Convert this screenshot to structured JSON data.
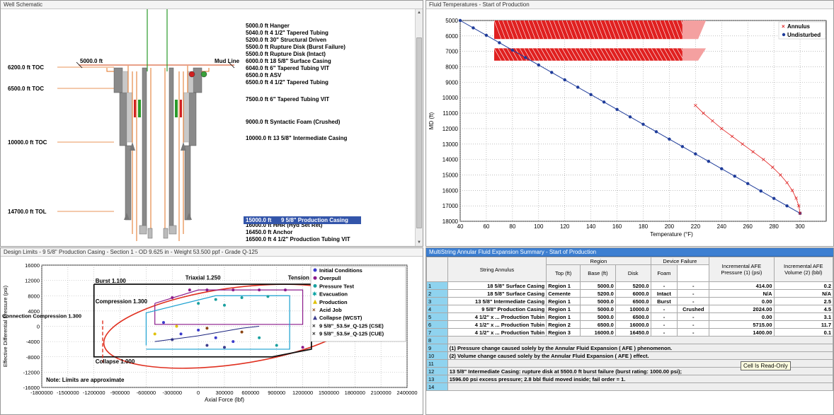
{
  "well": {
    "title": "Well Schematic",
    "left_labels": [
      {
        "text": "6200.0 ft  TOC",
        "y": 97
      },
      {
        "text": "6500.0 ft  TOC",
        "y": 127
      },
      {
        "text": "10000.0 ft  TOC",
        "y": 203
      },
      {
        "text": "14700.0 ft  TOL",
        "y": 301
      }
    ],
    "mudline_left": "5000.0 ft",
    "mudline_right": "Mud Line",
    "components": [
      {
        "text": "5000.0 ft  Hanger",
        "y": 38
      },
      {
        "text": "5040.0 ft  4 1/2\" Tapered Tubing",
        "y": 48
      },
      {
        "text": "5200.0 ft  30\" Structural Driven",
        "y": 58
      },
      {
        "text": "5500.0 ft  Rupture Disk (Burst Failure)",
        "y": 68
      },
      {
        "text": "5500.0 ft  Rupture Disk (Intact)",
        "y": 78
      },
      {
        "text": "6000.0 ft  18 5/8\" Surface Casing",
        "y": 88
      },
      {
        "text": "6040.0 ft  6\" Tapered Tubing VIT",
        "y": 98
      },
      {
        "text": "6500.0 ft  ASV",
        "y": 108
      },
      {
        "text": "6500.0 ft  4 1/2\" Tapered Tubing",
        "y": 118
      },
      {
        "text": "7500.0 ft  6\" Tapered Tubing VIT",
        "y": 142
      },
      {
        "text": "9000.0 ft  Syntactic Foam (Crushed)",
        "y": 174
      },
      {
        "text": "10000.0 ft  13 5/8\" Intermediate Casing",
        "y": 197
      },
      {
        "text": "16000.0 ft  HHR (Hyd Set Ret)",
        "y": 320
      },
      {
        "text": "16450.0 ft  Anchor",
        "y": 330
      },
      {
        "text": "16500.0 ft  4 1/2\" Production Tubing VIT",
        "y": 340
      }
    ],
    "selected_depth": "15000.0 ft",
    "selected_name": "9 5/8\" Production Casing"
  },
  "temps": {
    "title": "Fluid Temperatures - Start of Production",
    "ylabel": "MD (ft)",
    "xlabel": "Temperature (°F)",
    "legend": [
      "Annulus",
      "Undisturbed"
    ]
  },
  "limits": {
    "title": "Design Limits - 9 5/8\" Production Casing - Section 1 - OD 9.625 in - Weight 53.500 ppf - Grade Q-125",
    "ylabel": "Effective Differential Pressure (psi)",
    "xlabel": "Axial Force (lbf)",
    "labels": {
      "burst": "Burst 1.100",
      "triaxial": "Triaxial 1.250",
      "tension": "Tension",
      "compression": "Compression 1.300",
      "conn_comp": "Connection Compression 1.300",
      "collapse": "Collapse 1.000",
      "note": "Note: Limits are approximate"
    },
    "legend": [
      {
        "label": "Initial Conditions",
        "color": "#3a3acc",
        "shape": "circle"
      },
      {
        "label": "Overpull",
        "color": "#8b1a8b",
        "shape": "circle"
      },
      {
        "label": "Pressure Test",
        "color": "#1aa0a0",
        "shape": "circle"
      },
      {
        "label": "Evacuation",
        "color": "#00a0a0",
        "shape": "star"
      },
      {
        "label": "Production",
        "color": "#e0c000",
        "shape": "tri"
      },
      {
        "label": "Acid Job",
        "color": "#8b4513",
        "shape": "x"
      },
      {
        "label": "Collapse (WCST)",
        "color": "#3c3c8c",
        "shape": "tri"
      },
      {
        "label": "9 5/8\"_53.5#_Q-125 (CSE)",
        "color": "#202020",
        "shape": "x"
      },
      {
        "label": "9 5/8\"_53.5#_Q-125 (CUE)",
        "color": "#202020",
        "shape": "x"
      }
    ],
    "letter_c": "C"
  },
  "afe": {
    "title": "MultiString Annular Fluid Expansion Summary - Start of Production",
    "headers": {
      "string_annulus": "String\nAnnulus",
      "region": "Region",
      "top": "Top (ft)",
      "base": "Base (ft)",
      "device_failure": "Device Failure",
      "disk": "Disk",
      "foam": "Foam",
      "pressure": "Incremental AFE Pressure (1) (psi)",
      "volume": "Incremental AFE Volume (2) (bbl)"
    },
    "rows": [
      {
        "n": "1",
        "name": "18 5/8\" Surface Casing",
        "region": "Region 1",
        "top": "5000.0",
        "base": "5200.0",
        "disk": "-",
        "foam": "-",
        "pres": "414.00",
        "vol": "0.2"
      },
      {
        "n": "2",
        "name": "18 5/8\" Surface Casing",
        "region": "Cemente",
        "top": "5200.0",
        "base": "6000.0",
        "disk": "Intact",
        "foam": "-",
        "pres": "N/A",
        "vol": "N/A"
      },
      {
        "n": "3",
        "name": "13 5/8\" Intermediate Casing",
        "region": "Region 1",
        "top": "5000.0",
        "base": "6500.0",
        "disk": "Burst",
        "foam": "-",
        "pres": "0.00",
        "vol": "2.5"
      },
      {
        "n": "4",
        "name": "9 5/8\" Production Casing",
        "region": "Region 1",
        "top": "5000.0",
        "base": "10000.0",
        "disk": "-",
        "foam": "Crushed",
        "pres": "2024.00",
        "vol": "4.5"
      },
      {
        "n": "5",
        "name": "4 1/2\" x ... Production Tubin",
        "region": "Region 1",
        "top": "5000.0",
        "base": "6500.0",
        "disk": "-",
        "foam": "-",
        "pres": "0.00",
        "vol": "3.1"
      },
      {
        "n": "6",
        "name": "4 1/2\" x ... Production Tubin",
        "region": "Region 2",
        "top": "6500.0",
        "base": "16000.0",
        "disk": "-",
        "foam": "-",
        "pres": "5715.00",
        "vol": "11.7"
      },
      {
        "n": "7",
        "name": "4 1/2\" x ... Production Tubin",
        "region": "Region 3",
        "top": "16000.0",
        "base": "16450.0",
        "disk": "-",
        "foam": "-",
        "pres": "1400.00",
        "vol": "0.1"
      }
    ],
    "empty_rows": [
      "8",
      "11",
      "14"
    ],
    "notes": [
      {
        "n": "9",
        "text": "(1) Pressure change caused solely by the Annular Fluid Expansion ( AFE ) phenomenon."
      },
      {
        "n": "10",
        "text": "(2) Volume change caused solely by the Annular Fluid Expansion ( AFE ) effect."
      },
      {
        "n": "12",
        "text": "13 5/8\" Intermediate Casing: rupture disk at 5500.0 ft burst failure (burst rating: 1000.00 psi);"
      },
      {
        "n": "13",
        "text": "1596.00 psi excess pressure; 2.8 bbl fluid moved inside; fail order = 1."
      }
    ],
    "tooltip": "Cell Is Read-Only"
  },
  "chart_data": [
    {
      "type": "line",
      "title": "Fluid Temperatures - Start of Production",
      "xlabel": "Temperature (°F)",
      "ylabel": "MD (ft)",
      "xlim": [
        40,
        320
      ],
      "ylim": [
        5000,
        18000
      ],
      "y_inverted": true,
      "xticks": [
        40,
        60,
        80,
        100,
        120,
        140,
        160,
        180,
        200,
        220,
        240,
        260,
        280,
        300
      ],
      "yticks": [
        5000,
        6000,
        7000,
        8000,
        9000,
        10000,
        11000,
        12000,
        13000,
        14000,
        15000,
        16000,
        17000,
        18000
      ],
      "grid": true,
      "legend": "top-right",
      "series": [
        {
          "name": "Undisturbed",
          "color": "#1f3c9a",
          "x": [
            40,
            50,
            60,
            70,
            80,
            90,
            100,
            110,
            120,
            130,
            140,
            150,
            160,
            170,
            180,
            190,
            200,
            210,
            220,
            230,
            240,
            250,
            260,
            270,
            280,
            290,
            300
          ],
          "y": [
            5000,
            5480,
            5960,
            6440,
            6920,
            7400,
            7880,
            8360,
            8840,
            9320,
            9800,
            10280,
            10760,
            11240,
            11720,
            12200,
            12680,
            13160,
            13640,
            14120,
            14600,
            15080,
            15560,
            16040,
            16520,
            17000,
            17480
          ]
        },
        {
          "name": "Annulus",
          "color": "#e02020",
          "x": [
            300,
            299,
            297,
            294,
            290,
            285,
            279,
            272,
            264,
            256,
            248,
            240,
            233,
            226,
            220
          ],
          "y": [
            17480,
            17000,
            16500,
            16000,
            15500,
            15000,
            14500,
            14000,
            13500,
            13000,
            12500,
            12000,
            11500,
            11000,
            10500
          ]
        }
      ]
    },
    {
      "type": "scatter",
      "title": "Design Limits - 9 5/8\" Production Casing - Section 1 - OD 9.625 in - Weight 53.500 ppf - Grade Q-125",
      "xlabel": "Axial Force (lbf)",
      "ylabel": "Effective Differential Pressure (psi)",
      "xlim": [
        -1800000,
        2400000
      ],
      "ylim": [
        -16000,
        16000
      ],
      "xticks": [
        -1800000,
        -1500000,
        -1200000,
        -900000,
        -600000,
        -300000,
        0,
        300000,
        600000,
        900000,
        1200000,
        1500000,
        1800000,
        2100000,
        2400000
      ],
      "yticks": [
        -16000,
        -12000,
        -8000,
        -4000,
        0,
        4000,
        8000,
        12000,
        16000
      ],
      "grid": true,
      "legend": "top-right"
    }
  ]
}
